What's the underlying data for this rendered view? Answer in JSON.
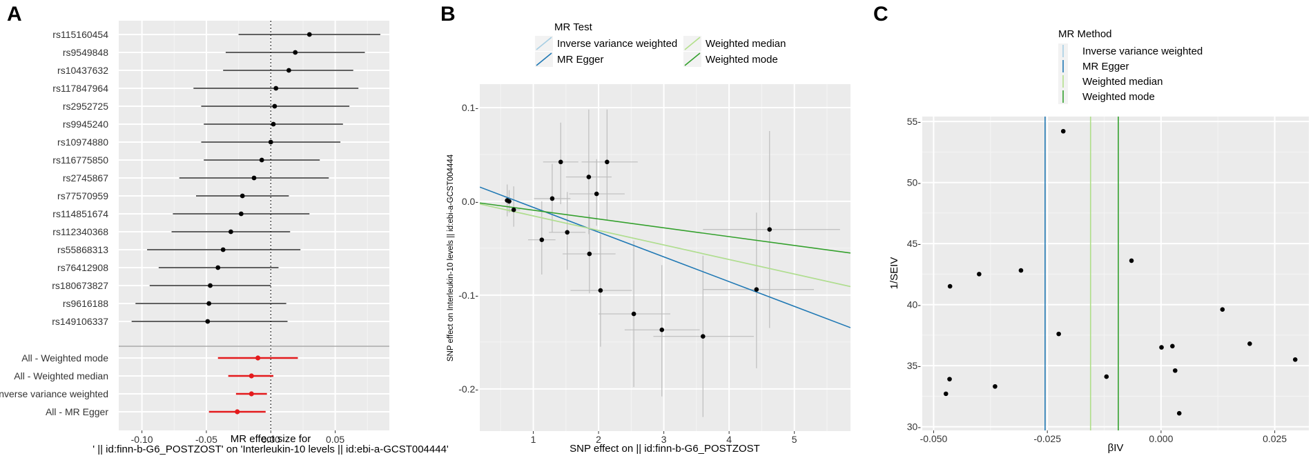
{
  "chart_data": [
    {
      "panel": "A",
      "type": "forest",
      "xlabel_line1": "MR effect size for",
      "xlabel_line2": "' || id:finn-b-G6_POSTZOST' on 'Interleukin-10 levels || id:ebi-a-GCST004444'",
      "x_ticks": [
        -0.1,
        -0.05,
        0.0,
        0.05
      ],
      "x_tick_labels": [
        "-0.10",
        "-0.05",
        "0.00",
        "0.05"
      ],
      "xlim": [
        -0.118,
        0.092
      ],
      "snps": [
        {
          "label": "rs115160454",
          "est": 0.03,
          "lo": -0.025,
          "hi": 0.085
        },
        {
          "label": "rs9549848",
          "est": 0.019,
          "lo": -0.035,
          "hi": 0.073
        },
        {
          "label": "rs10437632",
          "est": 0.014,
          "lo": -0.037,
          "hi": 0.064
        },
        {
          "label": "rs117847964",
          "est": 0.004,
          "lo": -0.06,
          "hi": 0.068
        },
        {
          "label": "rs2952725",
          "est": 0.003,
          "lo": -0.054,
          "hi": 0.061
        },
        {
          "label": "rs9945240",
          "est": 0.002,
          "lo": -0.052,
          "hi": 0.056
        },
        {
          "label": "rs10974880",
          "est": 0.0,
          "lo": -0.054,
          "hi": 0.054
        },
        {
          "label": "rs116775850",
          "est": -0.007,
          "lo": -0.052,
          "hi": 0.038
        },
        {
          "label": "rs2745867",
          "est": -0.013,
          "lo": -0.071,
          "hi": 0.045
        },
        {
          "label": "rs77570959",
          "est": -0.022,
          "lo": -0.058,
          "hi": 0.014
        },
        {
          "label": "rs114851674",
          "est": -0.023,
          "lo": -0.076,
          "hi": 0.03
        },
        {
          "label": "rs112340368",
          "est": -0.031,
          "lo": -0.077,
          "hi": 0.015
        },
        {
          "label": "rs55868313",
          "est": -0.037,
          "lo": -0.096,
          "hi": 0.023
        },
        {
          "label": "rs76412908",
          "est": -0.041,
          "lo": -0.087,
          "hi": 0.006
        },
        {
          "label": "rs180673827",
          "est": -0.047,
          "lo": -0.094,
          "hi": 0.0
        },
        {
          "label": "rs9616188",
          "est": -0.048,
          "lo": -0.105,
          "hi": 0.012
        },
        {
          "label": "rs149106337",
          "est": -0.049,
          "lo": -0.108,
          "hi": 0.013
        }
      ],
      "methods": [
        {
          "label": "All - Weighted mode",
          "est": -0.01,
          "lo": -0.041,
          "hi": 0.021
        },
        {
          "label": "All - Weighted median",
          "est": -0.015,
          "lo": -0.033,
          "hi": 0.002
        },
        {
          "label": "All - Inverse variance weighted",
          "est": -0.015,
          "lo": -0.027,
          "hi": -0.003
        },
        {
          "label": "All - MR Egger",
          "est": -0.026,
          "lo": -0.048,
          "hi": -0.004
        }
      ],
      "colors": {
        "snp": "#000000",
        "method": "#e41a1c"
      }
    },
    {
      "panel": "B",
      "type": "scatter",
      "legend_title": "MR Test",
      "legend_position": "top",
      "xlabel": "SNP effect on  || id:finn-b-G6_POSTZOST",
      "ylabel": "SNP effect on Interleukin-10 levels || id:ebi-a-GCST004444",
      "x_ticks": [
        1,
        2,
        3,
        4,
        5
      ],
      "x_tick_labels": [
        "1",
        "2",
        "3",
        "4",
        "5"
      ],
      "y_ticks": [
        0.1,
        0.0,
        -0.1,
        -0.2
      ],
      "y_tick_labels": [
        "0.1-",
        "0.0-",
        "-0.1-",
        "-0.2-"
      ],
      "xlim": [
        0.18,
        5.86
      ],
      "ylim": [
        -0.245,
        0.125
      ],
      "points": [
        {
          "x": 0.6,
          "y": 0.001,
          "xlo": 0.56,
          "xhi": 0.64,
          "ylo": -0.016,
          "yhi": 0.018
        },
        {
          "x": 0.63,
          "y": 0.0,
          "xlo": 0.58,
          "xhi": 0.68,
          "ylo": -0.012,
          "yhi": 0.012
        },
        {
          "x": 0.7,
          "y": -0.009,
          "xlo": 0.6,
          "xhi": 0.8,
          "ylo": -0.027,
          "yhi": 0.016
        },
        {
          "x": 1.13,
          "y": -0.041,
          "xlo": 0.92,
          "xhi": 1.34,
          "ylo": -0.078,
          "yhi": 0.0
        },
        {
          "x": 1.29,
          "y": 0.003,
          "xlo": 1.01,
          "xhi": 1.57,
          "ylo": -0.033,
          "yhi": 0.04
        },
        {
          "x": 1.42,
          "y": 0.042,
          "xlo": 1.15,
          "xhi": 1.69,
          "ylo": -0.003,
          "yhi": 0.084
        },
        {
          "x": 1.52,
          "y": -0.033,
          "xlo": 1.24,
          "xhi": 1.8,
          "ylo": -0.073,
          "yhi": 0.01
        },
        {
          "x": 1.85,
          "y": 0.026,
          "xlo": 1.5,
          "xhi": 2.2,
          "ylo": -0.035,
          "yhi": 0.098
        },
        {
          "x": 1.86,
          "y": -0.056,
          "xlo": 1.45,
          "xhi": 2.26,
          "ylo": -0.098,
          "yhi": -0.014
        },
        {
          "x": 1.97,
          "y": 0.008,
          "xlo": 1.55,
          "xhi": 2.4,
          "ylo": -0.026,
          "yhi": 0.045
        },
        {
          "x": 2.03,
          "y": -0.095,
          "xlo": 1.57,
          "xhi": 2.51,
          "ylo": -0.155,
          "yhi": -0.035
        },
        {
          "x": 2.13,
          "y": 0.042,
          "xlo": 1.74,
          "xhi": 2.6,
          "ylo": -0.02,
          "yhi": 0.098
        },
        {
          "x": 2.54,
          "y": -0.12,
          "xlo": 2.0,
          "xhi": 3.1,
          "ylo": -0.198,
          "yhi": -0.042
        },
        {
          "x": 2.97,
          "y": -0.137,
          "xlo": 2.4,
          "xhi": 3.55,
          "ylo": -0.208,
          "yhi": -0.068
        },
        {
          "x": 3.6,
          "y": -0.144,
          "xlo": 2.84,
          "xhi": 4.38,
          "ylo": -0.23,
          "yhi": -0.058
        },
        {
          "x": 4.42,
          "y": -0.094,
          "xlo": 3.6,
          "xhi": 5.3,
          "ylo": -0.178,
          "yhi": -0.012
        },
        {
          "x": 4.62,
          "y": -0.03,
          "xlo": 3.6,
          "xhi": 5.7,
          "ylo": -0.135,
          "yhi": 0.075
        }
      ],
      "lines": [
        {
          "name": "Inverse variance weighted",
          "intercept": 0.0,
          "slope": -0.0155,
          "color": "#a6cee3"
        },
        {
          "name": "MR Egger",
          "intercept": 0.02,
          "slope": -0.0264,
          "color": "#1f78b4"
        },
        {
          "name": "Weighted median",
          "intercept": 0.0,
          "slope": -0.0155,
          "color": "#b2df8a"
        },
        {
          "name": "Weighted mode",
          "intercept": 0.0,
          "slope": -0.0094,
          "color": "#33a02c"
        }
      ],
      "legend_entries": [
        {
          "label": "Inverse variance weighted",
          "color": "#a6cee3"
        },
        {
          "label": "MR Egger",
          "color": "#1f78b4"
        },
        {
          "label": "Weighted median",
          "color": "#b2df8a"
        },
        {
          "label": "Weighted mode",
          "color": "#33a02c"
        }
      ]
    },
    {
      "panel": "C",
      "type": "scatter",
      "legend_title": "MR Method",
      "legend_position": "top",
      "xlabel": "βIV",
      "ylabel": "1/SEIV",
      "x_ticks": [
        -0.05,
        -0.025,
        0.0,
        0.025
      ],
      "x_tick_labels": [
        "-0.050",
        "-0.025",
        "0.000",
        "0.025"
      ],
      "y_ticks": [
        30,
        35,
        40,
        45,
        50,
        55
      ],
      "y_tick_labels": [
        "30-",
        "35-",
        "40-",
        "45-",
        "50-",
        "55-"
      ],
      "xlim": [
        -0.0525,
        0.0325
      ],
      "ylim": [
        29.7,
        55.4
      ],
      "points": [
        {
          "x": -0.0473,
          "y": 32.7
        },
        {
          "x": -0.0465,
          "y": 33.9
        },
        {
          "x": -0.0464,
          "y": 41.5
        },
        {
          "x": -0.04,
          "y": 42.5
        },
        {
          "x": -0.0365,
          "y": 33.3
        },
        {
          "x": -0.0308,
          "y": 42.8
        },
        {
          "x": -0.0225,
          "y": 37.6
        },
        {
          "x": -0.0215,
          "y": 54.2
        },
        {
          "x": -0.012,
          "y": 34.1
        },
        {
          "x": -0.0065,
          "y": 43.6
        },
        {
          "x": 0.0001,
          "y": 36.5
        },
        {
          "x": 0.0025,
          "y": 36.6
        },
        {
          "x": 0.0031,
          "y": 34.6
        },
        {
          "x": 0.004,
          "y": 31.1
        },
        {
          "x": 0.0135,
          "y": 39.6
        },
        {
          "x": 0.0195,
          "y": 36.8
        },
        {
          "x": 0.0295,
          "y": 35.5
        }
      ],
      "vlines": [
        {
          "name": "Inverse variance weighted",
          "x": -0.0155,
          "color": "#a6cee3"
        },
        {
          "name": "MR Egger",
          "x": -0.0255,
          "color": "#1f78b4"
        },
        {
          "name": "Weighted median",
          "x": -0.0155,
          "color": "#b2df8a"
        },
        {
          "name": "Weighted mode",
          "x": -0.0094,
          "color": "#33a02c"
        }
      ],
      "legend_entries": [
        {
          "label": "Inverse variance weighted",
          "color": "#a6cee3"
        },
        {
          "label": "MR Egger",
          "color": "#1f78b4"
        },
        {
          "label": "Weighted median",
          "color": "#b2df8a"
        },
        {
          "label": "Weighted mode",
          "color": "#33a02c"
        }
      ]
    }
  ],
  "panel_labels": [
    "A",
    "B",
    "C"
  ]
}
